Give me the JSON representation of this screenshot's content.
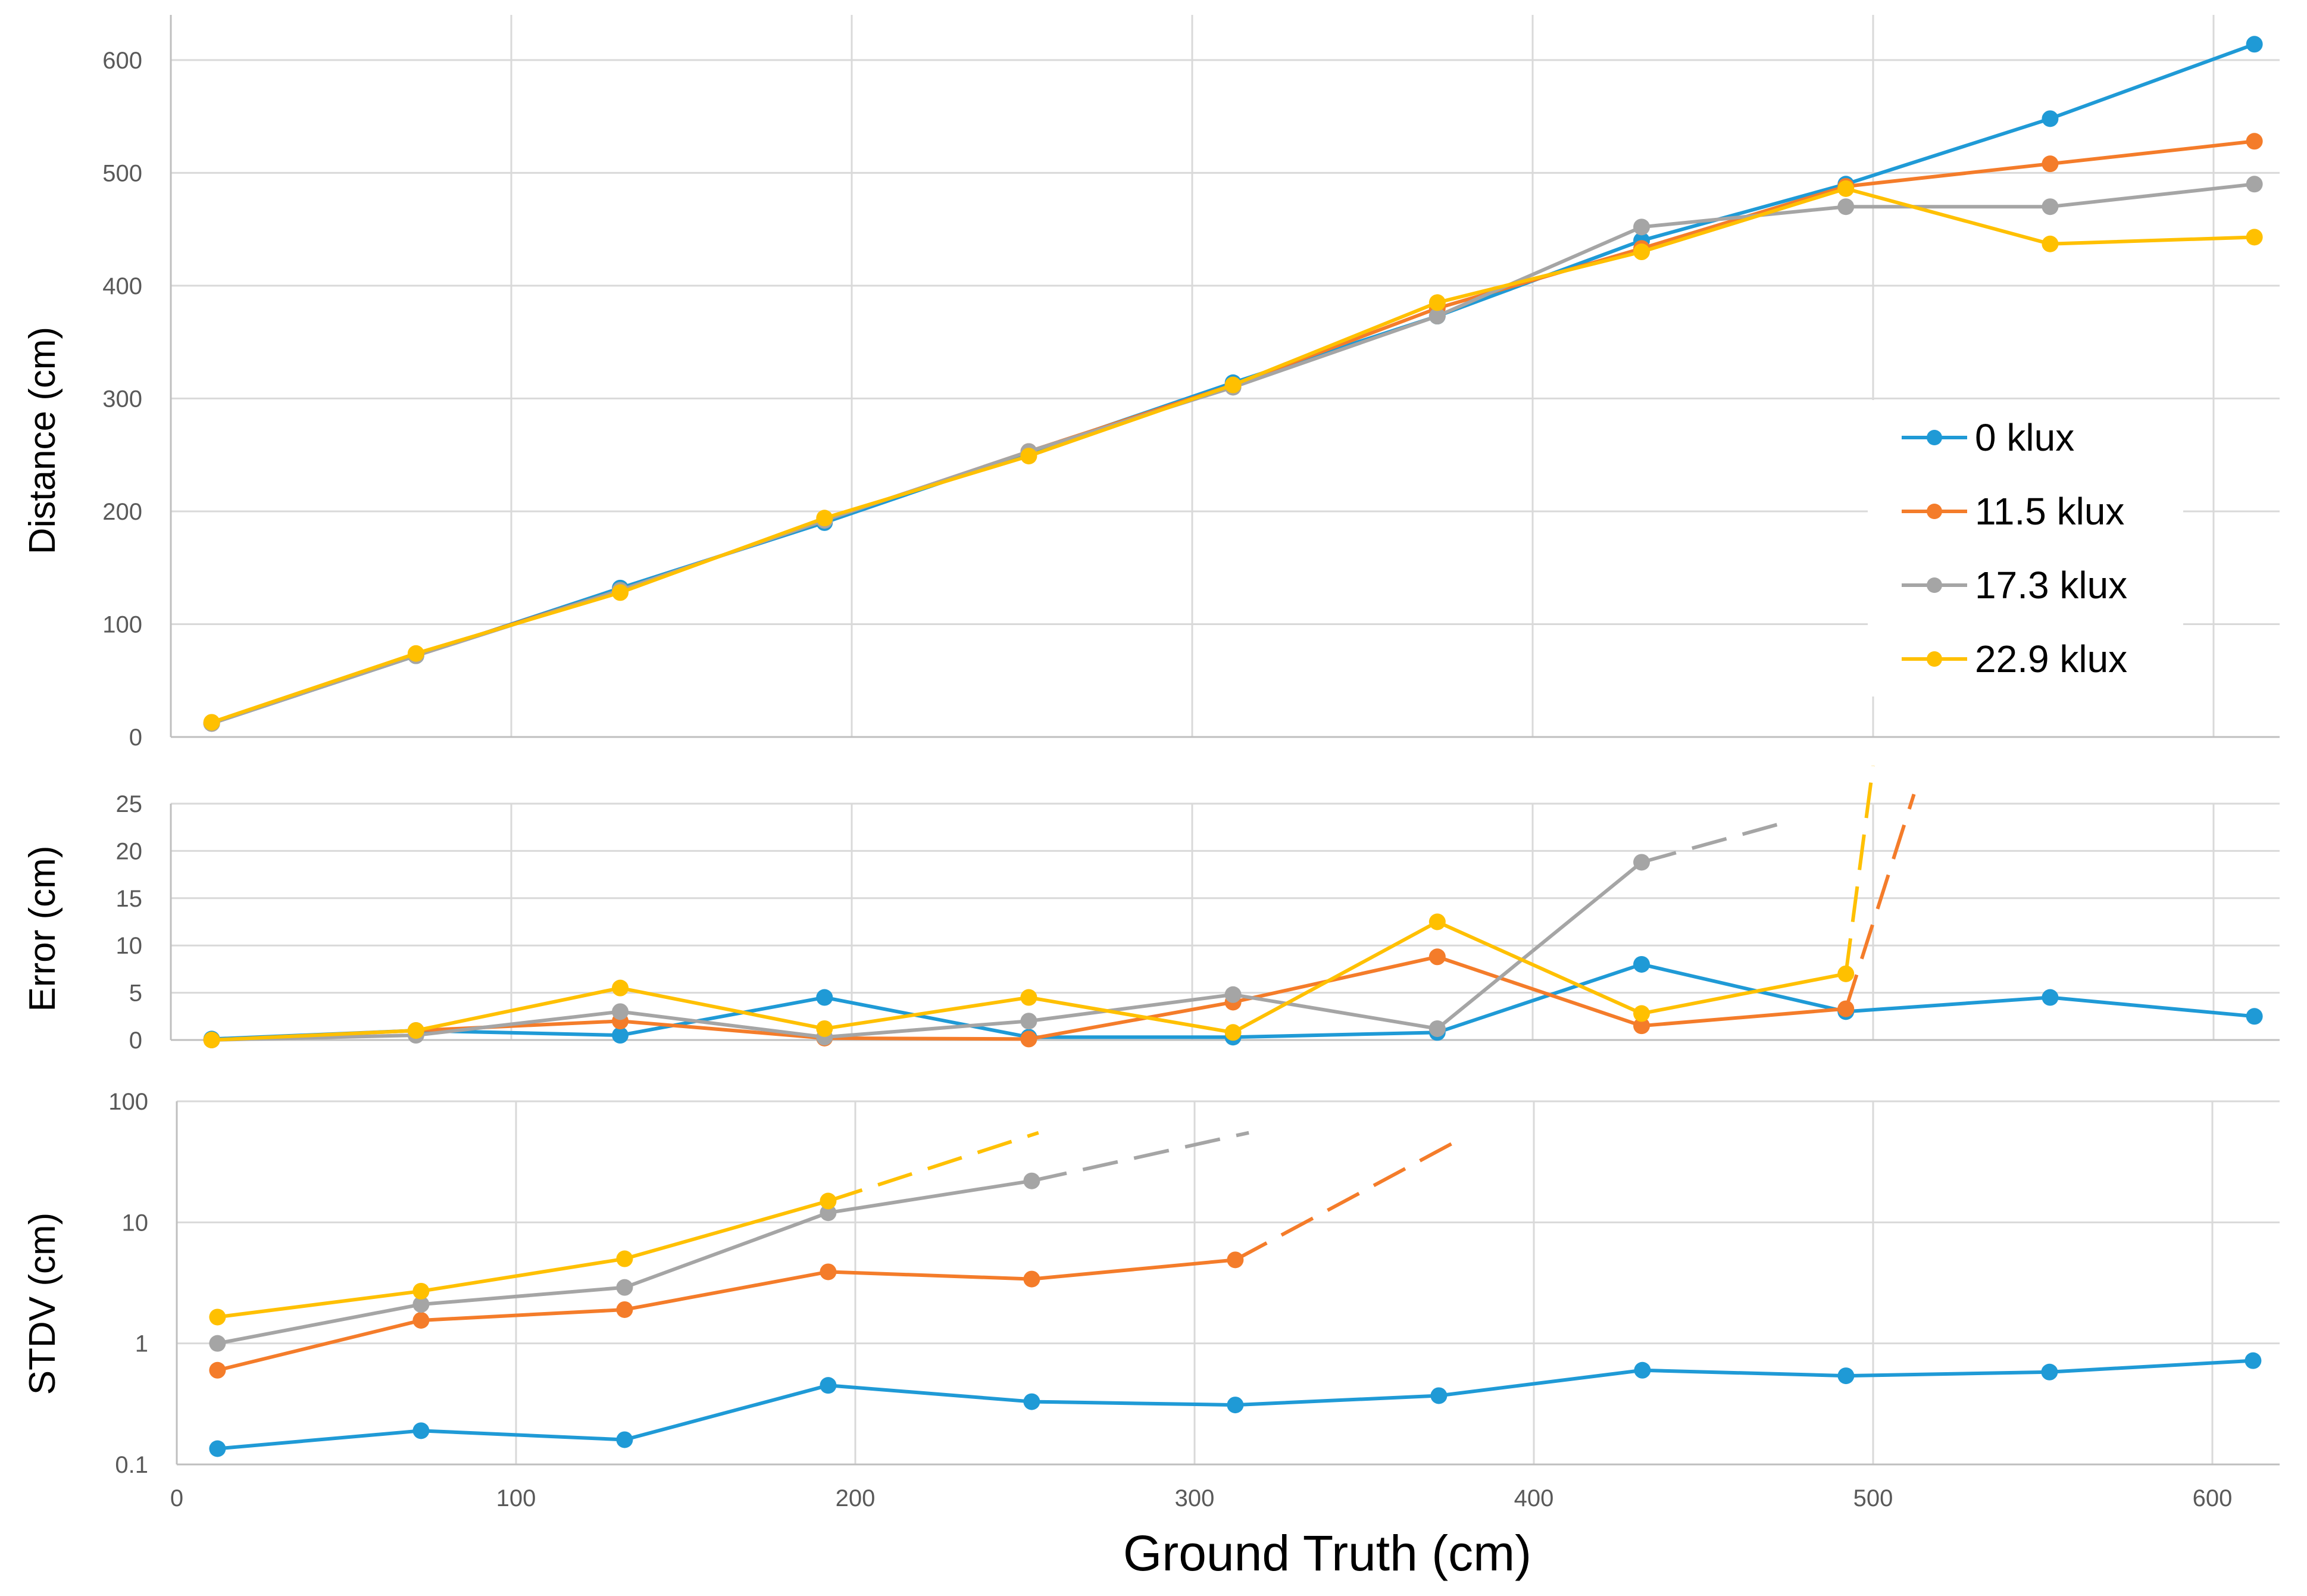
{
  "chart_data": [
    {
      "type": "line",
      "panel": "distance",
      "ylabel": "Distance (cm)",
      "xlabel": "",
      "xlim": [
        0,
        620
      ],
      "ylim": [
        0,
        640
      ],
      "x_ticks": [
        0,
        100,
        200,
        300,
        400,
        500,
        600
      ],
      "y_ticks": [
        "0",
        "100",
        "200",
        "300",
        "400",
        "500",
        "600"
      ],
      "grid": true,
      "legend_position": "right",
      "series": [
        {
          "name": "0 klux",
          "color": "#1f9ad6",
          "x": [
            12,
            72,
            132,
            192,
            252,
            312,
            372,
            432,
            492,
            552,
            612
          ],
          "y": [
            12,
            72,
            132,
            190,
            252,
            314,
            373,
            440,
            490,
            548,
            614
          ]
        },
        {
          "name": "11.5 klux",
          "color": "#f47c2a",
          "x": [
            12,
            72,
            132,
            192,
            252,
            312,
            372,
            432,
            492,
            552,
            612
          ],
          "y": [
            12,
            73,
            130,
            192,
            253,
            312,
            380,
            433,
            488,
            508,
            528
          ]
        },
        {
          "name": "17.3 klux",
          "color": "#a5a5a5",
          "x": [
            12,
            72,
            132,
            192,
            252,
            312,
            372,
            432,
            492,
            552,
            612
          ],
          "y": [
            12,
            72,
            130,
            192,
            253,
            310,
            373,
            452,
            470,
            470,
            490
          ]
        },
        {
          "name": "22.9 klux",
          "color": "#ffc000",
          "x": [
            12,
            72,
            132,
            192,
            252,
            312,
            372,
            432,
            492,
            552,
            612
          ],
          "y": [
            13,
            74,
            128,
            194,
            249,
            312,
            385,
            430,
            486,
            437,
            443
          ]
        }
      ]
    },
    {
      "type": "line",
      "panel": "error",
      "ylabel": "Error (cm)",
      "xlabel": "",
      "xlim": [
        0,
        620
      ],
      "ylim": [
        0,
        25
      ],
      "x_ticks": [
        0,
        100,
        200,
        300,
        400,
        500,
        600
      ],
      "y_ticks": [
        "0",
        "5",
        "10",
        "15",
        "20",
        "25"
      ],
      "grid": true,
      "series": [
        {
          "name": "0 klux",
          "color": "#1f9ad6",
          "x": [
            12,
            72,
            132,
            192,
            252,
            312,
            372,
            432,
            492,
            552,
            612
          ],
          "y": [
            0.1,
            1,
            0.5,
            4.5,
            0.3,
            0.3,
            0.8,
            8,
            3,
            4.5,
            2.5
          ]
        },
        {
          "name": "11.5 klux",
          "color": "#f47c2a",
          "x": [
            12,
            72,
            132,
            192,
            252,
            312,
            372,
            432,
            492
          ],
          "y": [
            0,
            1,
            2,
            0.2,
            0.1,
            4,
            8.8,
            1.5,
            3.3
          ],
          "beyond_axis": [
            [
              492,
              3.3
            ],
            [
              512,
              26
            ]
          ]
        },
        {
          "name": "17.3 klux",
          "color": "#a5a5a5",
          "x": [
            12,
            72,
            132,
            192,
            252,
            312,
            372,
            432
          ],
          "y": [
            0,
            0.5,
            3,
            0.3,
            2,
            4.8,
            1.2,
            18.8
          ],
          "beyond_axis": [
            [
              432,
              18.8
            ],
            [
              476,
              23.2
            ]
          ]
        },
        {
          "name": "22.9 klux",
          "color": "#ffc000",
          "x": [
            12,
            72,
            132,
            192,
            252,
            312,
            372,
            432,
            492
          ],
          "y": [
            0,
            1,
            5.5,
            1.2,
            4.5,
            0.8,
            12.5,
            2.8,
            7
          ],
          "beyond_axis": [
            [
              492,
              7
            ],
            [
              500,
              29
            ]
          ]
        }
      ]
    },
    {
      "type": "line",
      "panel": "stdv",
      "ylabel": "STDV (cm)",
      "xlabel": "Ground Truth (cm)",
      "xlim": [
        0,
        620
      ],
      "ylim": [
        0.1,
        100
      ],
      "y_scale": "log",
      "x_ticks": [
        "0",
        "100",
        "200",
        "300",
        "400",
        "500",
        "600"
      ],
      "y_ticks": [
        "0.1",
        "1",
        "10",
        "100"
      ],
      "grid": true,
      "series": [
        {
          "name": "0 klux",
          "color": "#1f9ad6",
          "x": [
            12,
            72,
            132,
            192,
            252,
            312,
            372,
            432,
            492,
            552,
            612
          ],
          "y": [
            0.135,
            0.19,
            0.16,
            0.45,
            0.33,
            0.31,
            0.37,
            0.6,
            0.54,
            0.58,
            0.72
          ]
        },
        {
          "name": "11.5 klux",
          "color": "#f47c2a",
          "x": [
            12,
            72,
            132,
            192,
            252,
            312
          ],
          "y": [
            0.6,
            1.55,
            1.9,
            3.9,
            3.4,
            4.9
          ],
          "beyond_axis": [
            [
              312,
              4.9
            ],
            [
              376,
              45
            ]
          ]
        },
        {
          "name": "17.3 klux",
          "color": "#a5a5a5",
          "x": [
            12,
            72,
            132,
            192,
            252
          ],
          "y": [
            1.0,
            2.1,
            2.9,
            12,
            22
          ],
          "beyond_axis": [
            [
              252,
              22
            ],
            [
              316,
              55
            ]
          ]
        },
        {
          "name": "22.9 klux",
          "color": "#ffc000",
          "x": [
            12,
            72,
            132,
            192
          ],
          "y": [
            1.65,
            2.7,
            5.0,
            15
          ],
          "beyond_axis": [
            [
              192,
              15
            ],
            [
              254,
              55
            ]
          ]
        }
      ]
    }
  ]
}
